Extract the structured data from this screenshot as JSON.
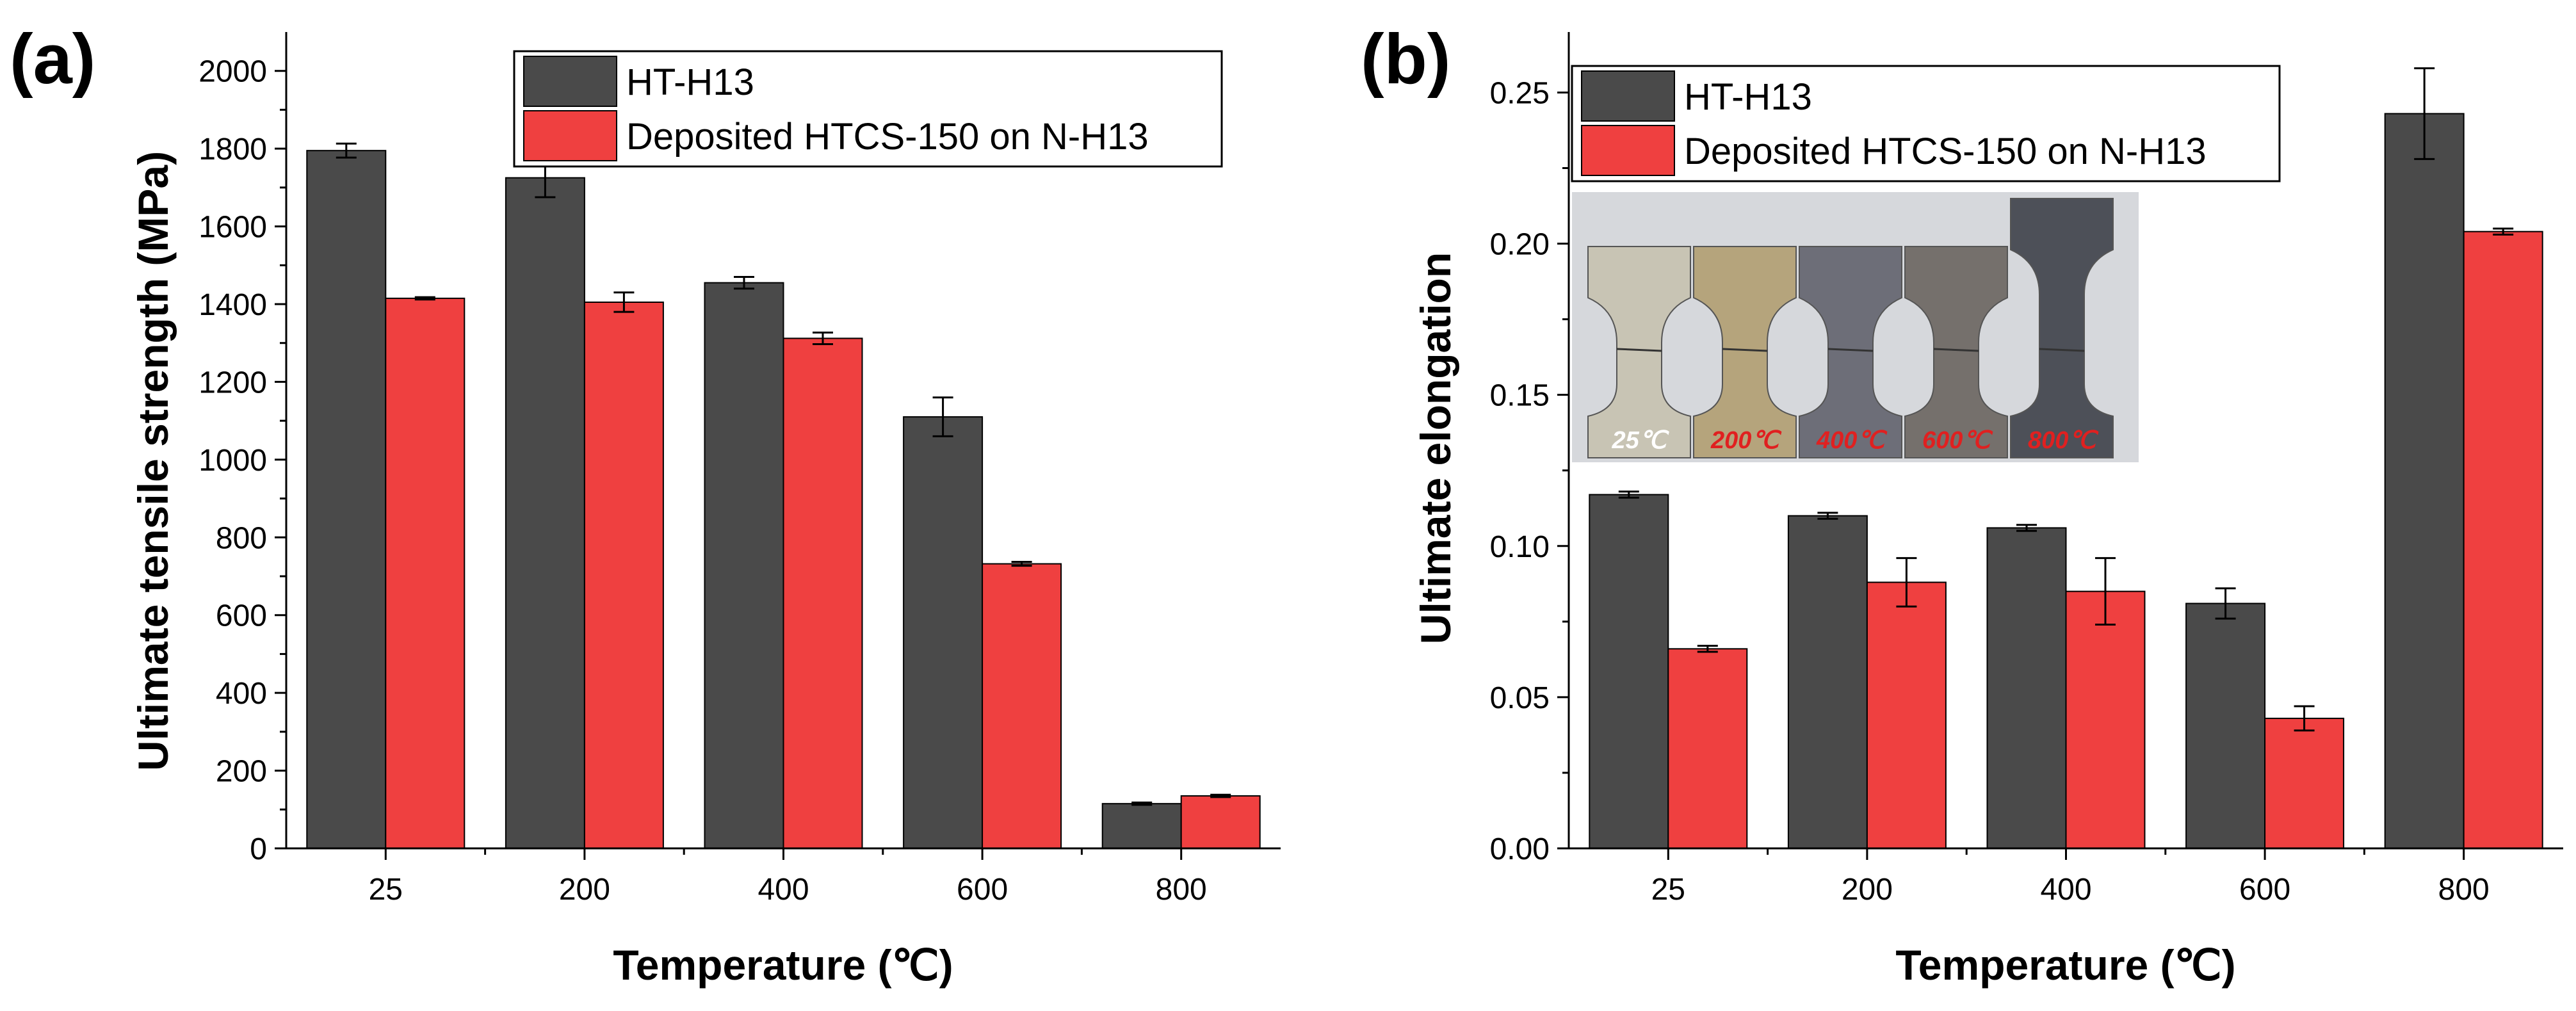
{
  "colors": {
    "series_a": "#4a4a4a",
    "series_b": "#ef4040",
    "axis": "#000000",
    "inset_text": "#e02020",
    "inset_first": "#ffffff"
  },
  "chart_data": [
    {
      "type": "bar",
      "panel_label": "(a)",
      "categories": [
        "25",
        "200",
        "400",
        "600",
        "800"
      ],
      "series": [
        {
          "name": "HT-H13",
          "values": [
            1795,
            1725,
            1455,
            1110,
            115
          ],
          "errors": [
            18,
            50,
            15,
            50,
            3
          ]
        },
        {
          "name": "Deposited HTCS-150 on N-H13",
          "values": [
            1415,
            1405,
            1312,
            732,
            135
          ],
          "errors": [
            3,
            25,
            15,
            5,
            3
          ]
        }
      ],
      "xlabel": "Temperature (℃)",
      "ylabel": "Ultimate tensile strength (MPa)",
      "ylim": [
        0,
        2100
      ],
      "yticks": [
        0,
        200,
        400,
        600,
        800,
        1000,
        1200,
        1400,
        1600,
        1800,
        2000
      ],
      "ytick_labels": [
        "0",
        "200",
        "400",
        "600",
        "800",
        "1000",
        "1200",
        "1400",
        "1600",
        "1800",
        "2000"
      ],
      "legend_position": "top-right",
      "grid": false
    },
    {
      "type": "bar",
      "panel_label": "(b)",
      "categories": [
        "25",
        "200",
        "400",
        "600",
        "800"
      ],
      "series": [
        {
          "name": "HT-H13",
          "values": [
            0.117,
            0.11,
            0.106,
            0.081,
            0.243
          ],
          "errors": [
            0.001,
            0.001,
            0.001,
            0.005,
            0.015
          ]
        },
        {
          "name": "Deposited HTCS-150 on N-H13",
          "values": [
            0.066,
            0.088,
            0.085,
            0.043,
            0.204
          ],
          "errors": [
            0.001,
            0.008,
            0.011,
            0.004,
            0.001
          ]
        }
      ],
      "xlabel": "Temperature (℃)",
      "ylabel": "Ultimate elongation",
      "ylim": [
        0,
        0.27
      ],
      "yticks": [
        0,
        0.05,
        0.1,
        0.15,
        0.2,
        0.25
      ],
      "ytick_labels": [
        "0.00",
        "0.05",
        "0.10",
        "0.15",
        "0.20",
        "0.25"
      ],
      "legend_position": "top-left",
      "grid": false,
      "inset": {
        "labels": [
          "25℃",
          "200℃",
          "400℃",
          "600℃",
          "800℃"
        ]
      }
    }
  ]
}
